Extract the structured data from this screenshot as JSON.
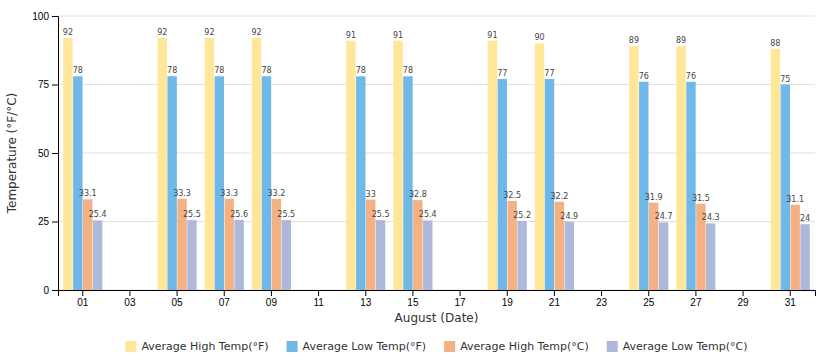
{
  "chart_data": {
    "type": "bar",
    "x_label": "August (Date)",
    "y_label": "Temperature (°F/°C)",
    "categories": [
      "01",
      "03",
      "05",
      "07",
      "09",
      "11",
      "13",
      "15",
      "17",
      "19",
      "21",
      "23",
      "25",
      "27",
      "29",
      "31"
    ],
    "series": [
      {
        "name": "Average High Temp(°F)",
        "color": "#FFE699",
        "values": [
          92,
          null,
          92,
          92,
          92,
          null,
          91,
          91,
          null,
          91,
          90,
          null,
          89,
          89,
          null,
          88
        ]
      },
      {
        "name": "Average Low Temp(°F)",
        "color": "#70B8E8",
        "values": [
          78,
          null,
          78,
          78,
          78,
          null,
          78,
          78,
          null,
          77,
          77,
          null,
          76,
          76,
          null,
          75
        ]
      },
      {
        "name": "Average High Temp(°C)",
        "color": "#F4B183",
        "values": [
          33.1,
          null,
          33.3,
          33.3,
          33.2,
          null,
          33,
          32.8,
          null,
          32.5,
          32.2,
          null,
          31.9,
          31.5,
          null,
          31.1
        ]
      },
      {
        "name": "Average Low Temp(°C)",
        "color": "#ADB9DA",
        "values": [
          25.4,
          null,
          25.5,
          25.6,
          25.5,
          null,
          25.5,
          25.4,
          null,
          25.2,
          24.9,
          null,
          24.7,
          24.3,
          null,
          24
        ]
      }
    ],
    "ylim": [
      0,
      100
    ],
    "yticks": [
      0,
      25,
      50,
      75,
      100
    ],
    "grid": true,
    "legend": "bottom",
    "data_labels": true
  }
}
